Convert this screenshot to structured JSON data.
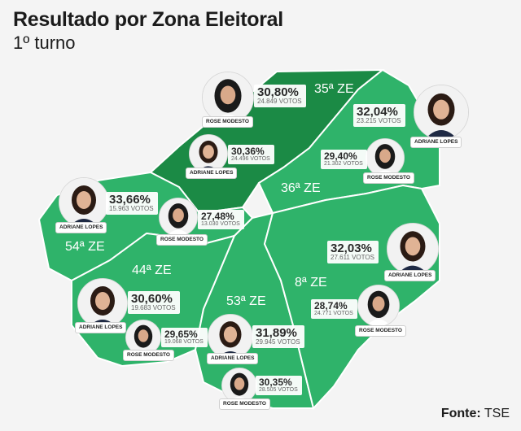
{
  "title": "Resultado por Zona Eleitoral",
  "subtitle": "1º turno",
  "source": {
    "label": "Fonte:",
    "value": "TSE"
  },
  "colors": {
    "winner_adriane": "#2fb36a",
    "winner_rose": "#1b8a45",
    "light": "#5fc98a",
    "border": "#ffffff"
  },
  "zones": [
    {
      "label": "35ª ZE",
      "candidates": [
        {
          "name": "ROSE MODESTO",
          "percent": "30,80%",
          "votes": "24.849 VOTOS"
        },
        {
          "name": "ADRIANE LOPES",
          "percent": "30,36%",
          "votes": "24.496 VOTOS"
        }
      ]
    },
    {
      "label": "36ª ZE",
      "candidates": [
        {
          "name": "ADRIANE LOPES",
          "percent": "32,04%",
          "votes": "23.215 VOTOS"
        },
        {
          "name": "ROSE MODESTO",
          "percent": "29,40%",
          "votes": "21.302 VOTOS"
        }
      ]
    },
    {
      "label": "54ª ZE",
      "candidates": [
        {
          "name": "ADRIANE LOPES",
          "percent": "33,66%",
          "votes": "15.963 VOTOS"
        },
        {
          "name": "ROSE MODESTO",
          "percent": "27,48%",
          "votes": "13.030 VOTOS"
        }
      ]
    },
    {
      "label": "8ª ZE",
      "candidates": [
        {
          "name": "ADRIANE LOPES",
          "percent": "32,03%",
          "votes": "27.611 VOTOS"
        },
        {
          "name": "ROSE MODESTO",
          "percent": "28,74%",
          "votes": "24.771 VOTOS"
        }
      ]
    },
    {
      "label": "44ª ZE",
      "candidates": [
        {
          "name": "ADRIANE LOPES",
          "percent": "30,60%",
          "votes": "19.683 VOTOS"
        },
        {
          "name": "ROSE MODESTO",
          "percent": "29,65%",
          "votes": "19.068 VOTOS"
        }
      ]
    },
    {
      "label": "53ª ZE",
      "candidates": [
        {
          "name": "ADRIANE LOPES",
          "percent": "31,89%",
          "votes": "29.945 VOTOS"
        },
        {
          "name": "ROSE MODESTO",
          "percent": "30,35%",
          "votes": "28.505 VOTOS"
        }
      ]
    }
  ]
}
